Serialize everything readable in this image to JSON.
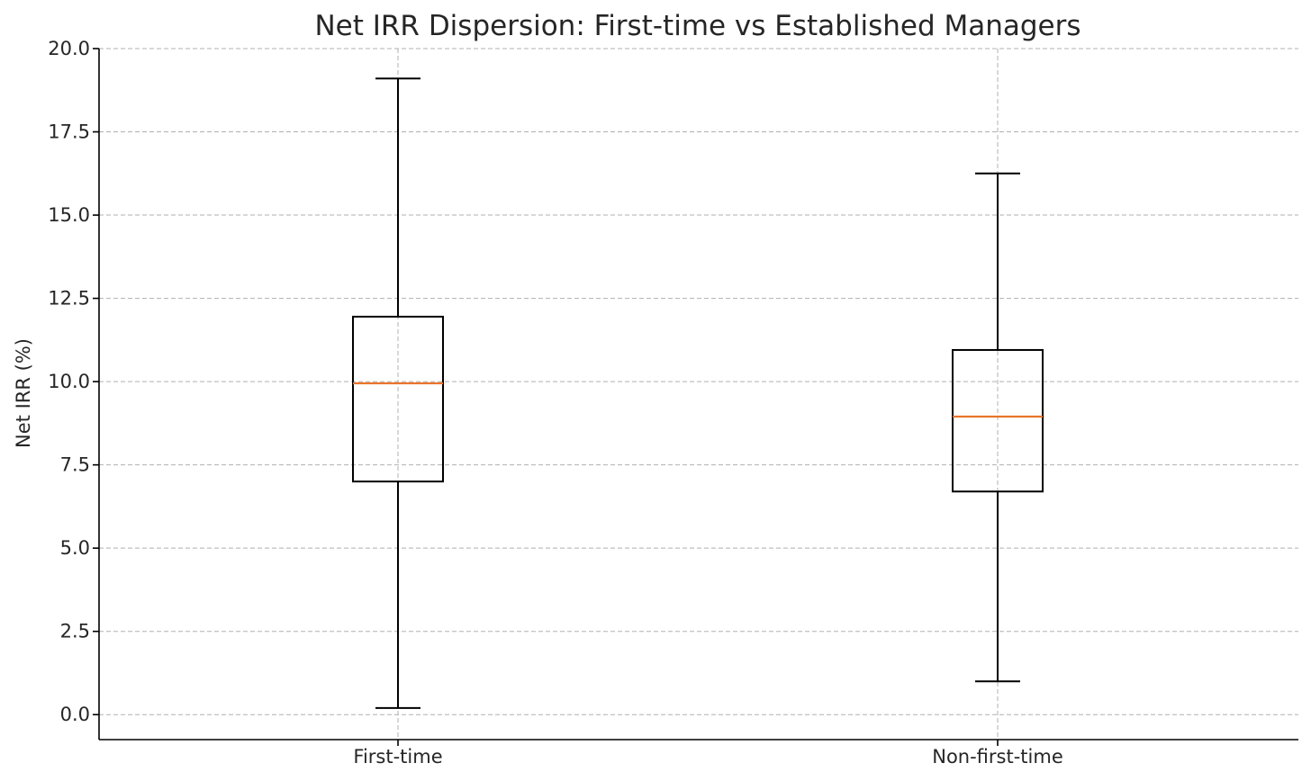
{
  "chart_data": {
    "type": "box",
    "title": "Net IRR Dispersion: First-time vs Established Managers",
    "xlabel": "",
    "ylabel": "Net IRR (%)",
    "ylim": [
      -0.75,
      20.0
    ],
    "yticks": [
      "0.0",
      "2.5",
      "5.0",
      "7.5",
      "10.0",
      "12.5",
      "15.0",
      "17.5",
      "20.0"
    ],
    "grid": true,
    "categories": [
      "First-time",
      "Non-first-time"
    ],
    "boxes": [
      {
        "category": "First-time",
        "whisker_low": 0.2,
        "q1": 7.0,
        "median": 9.95,
        "q3": 11.95,
        "whisker_high": 19.1
      },
      {
        "category": "Non-first-time",
        "whisker_low": 1.0,
        "q1": 6.7,
        "median": 8.95,
        "q3": 10.95,
        "whisker_high": 16.25
      }
    ],
    "colors": {
      "median": "#e8742a",
      "box": "#000000",
      "grid": "#b0b0b0"
    }
  }
}
